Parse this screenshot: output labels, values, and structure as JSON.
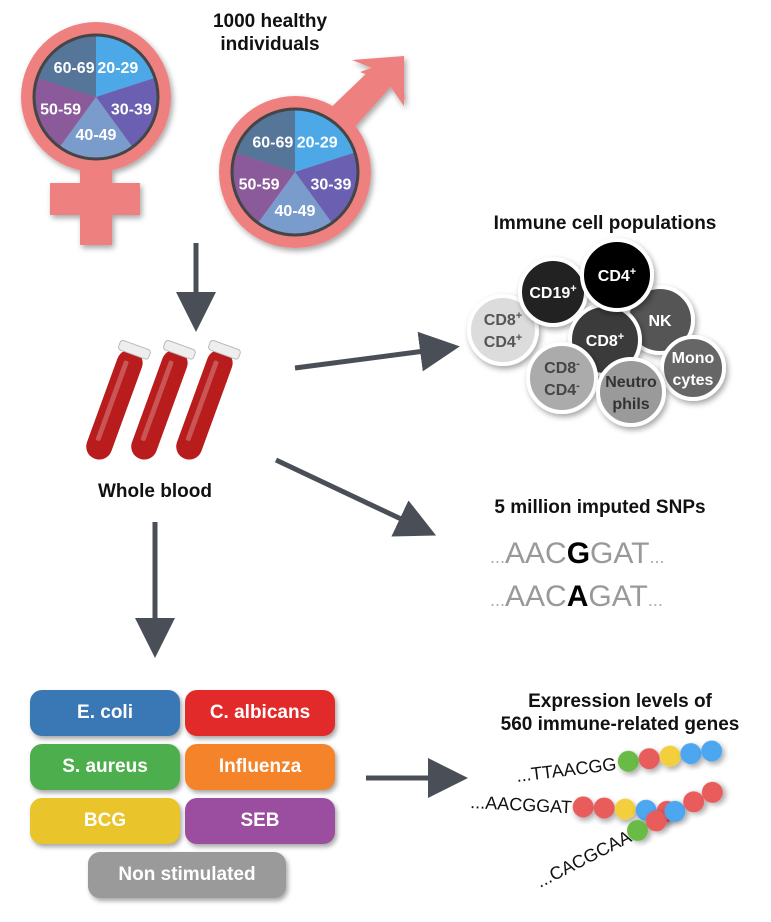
{
  "cohort": {
    "title_line1": "1000 healthy",
    "title_line2": "individuals",
    "age_groups": [
      "20-29",
      "30-39",
      "40-49",
      "50-59",
      "60-69"
    ],
    "age_colors": [
      "#4ea8e8",
      "#6a5fb0",
      "#7a9ccc",
      "#8a5a9a",
      "#557499"
    ],
    "symbol_color": "#ef8080",
    "symbols": [
      "female-symbol",
      "male-symbol"
    ]
  },
  "blood": {
    "label": "Whole blood",
    "tube_color": "#b81c1c"
  },
  "cells": {
    "title": "Immune cell populations",
    "items": [
      {
        "line1": "CD8",
        "sup1": "+",
        "line2": "CD4",
        "sup2": "+",
        "fill": "#dcdcdc",
        "text": "#555"
      },
      {
        "line1": "CD19",
        "sup1": "+",
        "fill": "#222",
        "text": "#fff"
      },
      {
        "line1": "NK",
        "fill": "#555",
        "text": "#fff"
      },
      {
        "line1": "CD8",
        "sup1": "+",
        "fill": "#3a3a3a",
        "text": "#fff"
      },
      {
        "line1": "CD4",
        "sup1": "+",
        "fill": "#000",
        "text": "#fff"
      },
      {
        "line1": "CD8",
        "sup1": "-",
        "line2": "CD4",
        "sup2": "-",
        "fill": "#ababab",
        "text": "#444"
      },
      {
        "line1": "Mono",
        "line2": "cytes",
        "fill": "#666",
        "text": "#fff"
      },
      {
        "line1": "Neutro",
        "line2": "phils",
        "fill": "#9a9a9a",
        "text": "#333"
      }
    ]
  },
  "snps": {
    "title": "5 million imputed SNPs",
    "seq1": {
      "pre": "AAC",
      "snp": "G",
      "post": "GAT"
    },
    "seq2": {
      "pre": "AAC",
      "snp": "A",
      "post": "GAT"
    },
    "ellipsis": "..."
  },
  "stimuli": [
    {
      "label": "E. coli",
      "color": "#3a78b5"
    },
    {
      "label": "C. albicans",
      "color": "#e22a2a"
    },
    {
      "label": "S. aureus",
      "color": "#4cae4c"
    },
    {
      "label": "Influenza",
      "color": "#f5832a"
    },
    {
      "label": "BCG",
      "color": "#e9c42b"
    },
    {
      "label": "SEB",
      "color": "#9b4da0"
    },
    {
      "label": "Non stimulated",
      "color": "#9a9a9a"
    }
  ],
  "expression": {
    "title_line1": "Expression levels of",
    "title_line2": "560 immune-related genes",
    "strands": [
      {
        "seq": "...TTAACGG",
        "beads": [
          "#6bbb45",
          "#e85c5c",
          "#f3cf3c",
          "#4ea6f0",
          "#4ea6f0"
        ]
      },
      {
        "seq": "...AACGGAT",
        "beads": [
          "#e85c5c",
          "#e85c5c",
          "#f3cf3c",
          "#4ea6f0",
          "#e85c5c"
        ]
      },
      {
        "seq": "...CACGCAA",
        "beads": [
          "#6bbb45",
          "#e85c5c",
          "#4ea6f0",
          "#e85c5c",
          "#e85c5c"
        ]
      }
    ]
  },
  "arrow_color": "#4a4f57"
}
